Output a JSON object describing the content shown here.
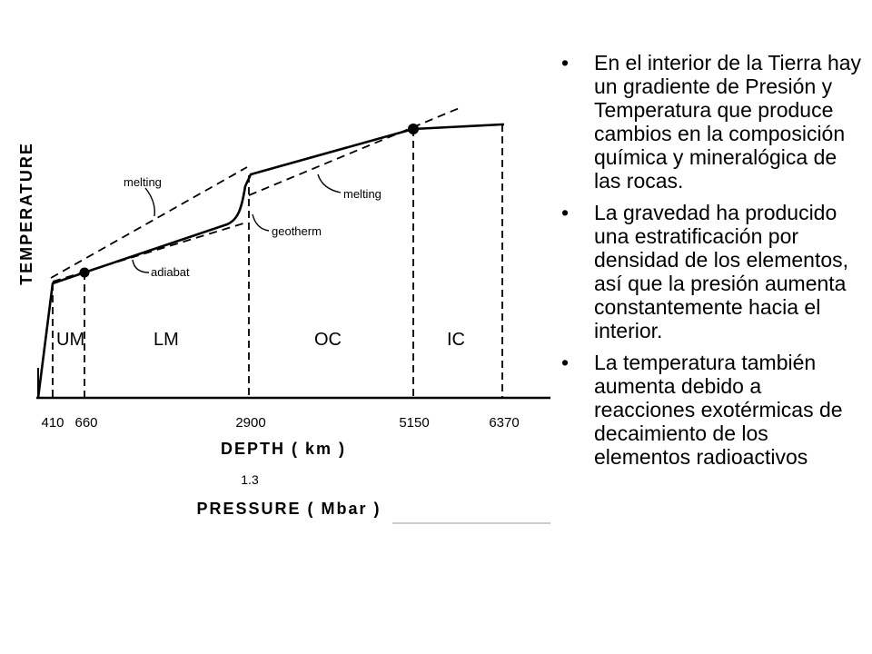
{
  "diagram": {
    "y_axis_title": "TEMPERATURE",
    "x_axis_title": "DEPTH ( km )",
    "pressure_value": "1.3",
    "pressure_title": "PRESSURE ( Mbar )",
    "depth_ticks": [
      "410",
      "660",
      "2900",
      "5150",
      "6370"
    ],
    "regions": [
      "UM",
      "LM",
      "OC",
      "IC"
    ],
    "annotations": {
      "melting_upper": "melting",
      "melting_lower": "melting",
      "geotherm": "geotherm",
      "adiabat": "adiabat"
    }
  },
  "bullets": [
    "En el interior de la Tierra hay un gradiente de Presión y Temperatura que produce cambios en la composición química y mineralógica de las rocas.",
    "La gravedad ha producido una estratificación por densidad de los elementos, así que la presión aumenta constantemente hacia el interior.",
    "La temperatura también aumenta debido a reacciones exotérmicas de decaimiento de los elementos radioactivos"
  ],
  "bullet_symbol": "•"
}
